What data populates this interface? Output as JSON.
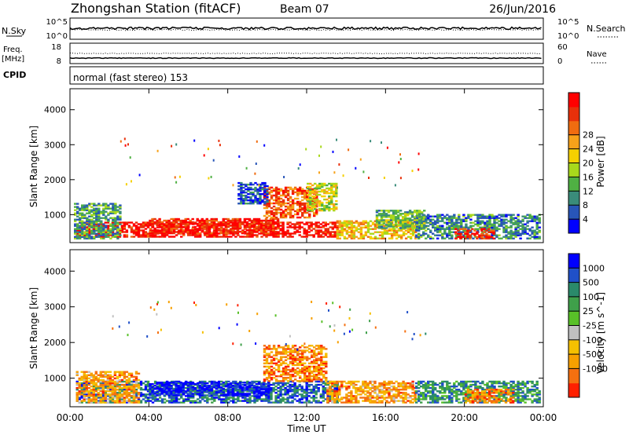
{
  "header": {
    "station": "Zhongshan Station (fitACF)",
    "beam": "Beam 07",
    "date": "26/Jun/2016"
  },
  "panels": {
    "nsky": {
      "left_label": "N.Sky",
      "right_label": "N.Search",
      "ticks_left": [
        "10^5",
        "10^0"
      ],
      "ticks_right": [
        "10^5",
        "10^0"
      ]
    },
    "freq": {
      "left_label_1": "Freq.",
      "left_label_2": "[MHz]",
      "right_label": "Nave",
      "ticks_left": [
        "18",
        "8"
      ],
      "ticks_right": [
        "60",
        "0"
      ]
    },
    "cpid": {
      "label": "CPID",
      "text": "normal (fast stereo) 153"
    }
  },
  "chart_data": [
    {
      "type": "heatmap",
      "name": "power",
      "ylabel": "Slant Range [km]",
      "yticks": [
        1000,
        2000,
        3000,
        4000
      ],
      "ylim": [
        200,
        4600
      ],
      "xlim_hours": [
        0,
        24
      ],
      "colorbar": {
        "label": "Power [dB]",
        "tick_labels": [
          "4",
          "8",
          "12",
          "16",
          "20",
          "24",
          "28"
        ],
        "colors": [
          "#0000ff",
          "#2855b8",
          "#3a8c7a",
          "#4fb043",
          "#a8d81c",
          "#f5d000",
          "#f7a21a",
          "#f06c10",
          "#e8300a",
          "#ff0000"
        ]
      },
      "regions": [
        {
          "t0": 0.3,
          "t1": 13.5,
          "r0": 350,
          "r1": 800,
          "level": 0.95
        },
        {
          "t0": 4.0,
          "t1": 10.5,
          "r0": 450,
          "r1": 900,
          "level": 0.9
        },
        {
          "t0": 13.5,
          "t1": 17.5,
          "r0": 300,
          "r1": 800,
          "level": 0.6
        },
        {
          "t0": 9.8,
          "t1": 12.5,
          "r0": 900,
          "r1": 1800,
          "level": 0.8
        },
        {
          "t0": 12.0,
          "t1": 13.5,
          "r0": 1100,
          "r1": 1900,
          "level": 0.5
        },
        {
          "t0": 0.2,
          "t1": 2.5,
          "r0": 300,
          "r1": 1300,
          "level": 0.3
        },
        {
          "t0": 17.5,
          "t1": 23.8,
          "r0": 300,
          "r1": 1000,
          "level": 0.25
        },
        {
          "t0": 19.5,
          "t1": 21.5,
          "r0": 300,
          "r1": 600,
          "level": 0.9
        },
        {
          "t0": 8.5,
          "t1": 10.0,
          "r0": 1300,
          "r1": 1900,
          "level": 0.15
        },
        {
          "t0": 15.5,
          "t1": 18.0,
          "r0": 600,
          "r1": 1100,
          "level": 0.35
        }
      ]
    },
    {
      "type": "heatmap",
      "name": "velocity",
      "ylabel": "Slant Range [km]",
      "xlabel": "Time UT",
      "xticks": [
        "00:00",
        "04:00",
        "08:00",
        "12:00",
        "16:00",
        "20:00",
        "00:00"
      ],
      "yticks": [
        1000,
        2000,
        3000,
        4000
      ],
      "ylim": [
        200,
        4600
      ],
      "xlim_hours": [
        0,
        24
      ],
      "colorbar": {
        "label": "Velocity [m s^-1]",
        "tick_labels": [
          "1000",
          "500",
          "100",
          "25",
          "-25",
          "-100",
          "-500",
          "-1000"
        ],
        "colors": [
          "#0000ff",
          "#2050c8",
          "#2a8a6a",
          "#3fa04a",
          "#58c028",
          "#c0c0c0",
          "#f5c000",
          "#f7a000",
          "#f57010",
          "#ff2000"
        ]
      },
      "regions": [
        {
          "t0": 0.3,
          "t1": 13.5,
          "r0": 300,
          "r1": 900,
          "level": 0.2
        },
        {
          "t0": 4.0,
          "t1": 10.0,
          "r0": 500,
          "r1": 900,
          "level": 0.05
        },
        {
          "t0": 9.8,
          "t1": 13.0,
          "r0": 900,
          "r1": 1900,
          "level": 0.8
        },
        {
          "t0": 13.0,
          "t1": 17.5,
          "r0": 300,
          "r1": 900,
          "level": 0.75
        },
        {
          "t0": 17.5,
          "t1": 23.8,
          "r0": 300,
          "r1": 900,
          "level": 0.3
        },
        {
          "t0": 0.3,
          "t1": 3.5,
          "r0": 300,
          "r1": 1200,
          "level": 0.75
        },
        {
          "t0": 20.0,
          "t1": 22.5,
          "r0": 300,
          "r1": 700,
          "level": 0.8
        }
      ]
    }
  ]
}
